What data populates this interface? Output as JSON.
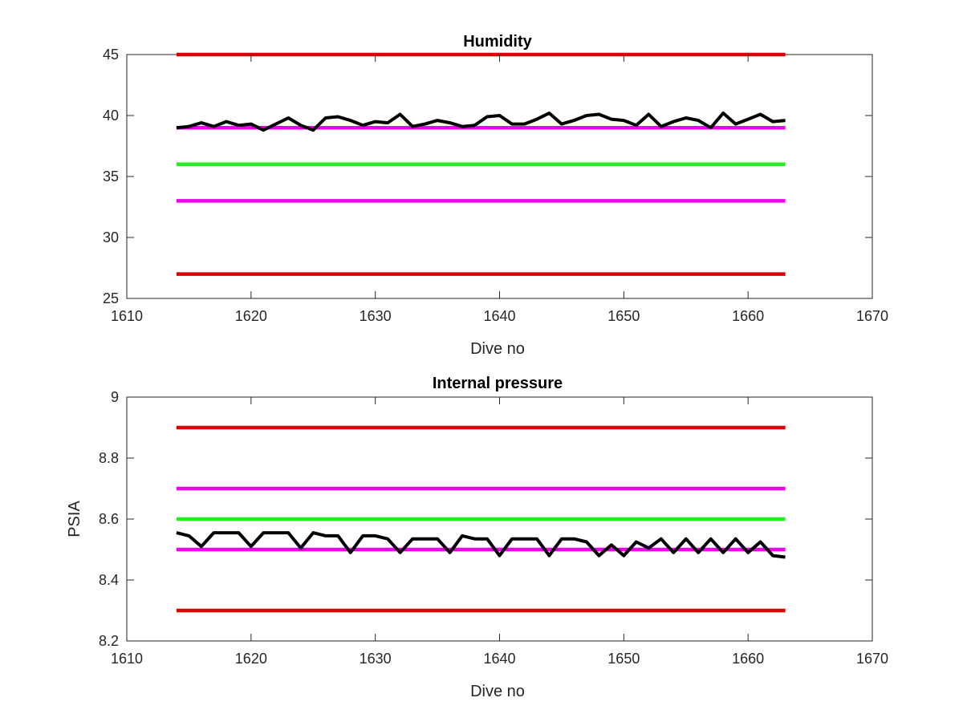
{
  "chart_data": [
    {
      "type": "line",
      "title": "Humidity",
      "xlabel": "Dive no",
      "ylabel": "",
      "xlim": [
        1610,
        1670
      ],
      "ylim": [
        25,
        45
      ],
      "xticks": [
        "1610",
        "1620",
        "1630",
        "1640",
        "1650",
        "1660",
        "1670"
      ],
      "yticks": [
        "25",
        "30",
        "35",
        "40",
        "45"
      ],
      "grid": false,
      "threshold_lines": [
        {
          "y": 45,
          "x": [
            1614,
            1663
          ],
          "color": "#dd0000"
        },
        {
          "y": 39,
          "x": [
            1614,
            1663
          ],
          "color": "#ee00ee"
        },
        {
          "y": 36,
          "x": [
            1614,
            1663
          ],
          "color": "#22ee22"
        },
        {
          "y": 33,
          "x": [
            1614,
            1663
          ],
          "color": "#ee00ee"
        },
        {
          "y": 27,
          "x": [
            1614,
            1663
          ],
          "color": "#dd0000"
        }
      ],
      "series": [
        {
          "color": "#000000",
          "x": [
            1614,
            1615,
            1616,
            1617,
            1618,
            1619,
            1620,
            1621,
            1622,
            1623,
            1624,
            1625,
            1626,
            1627,
            1628,
            1629,
            1630,
            1631,
            1632,
            1633,
            1634,
            1635,
            1636,
            1637,
            1638,
            1639,
            1640,
            1641,
            1642,
            1643,
            1644,
            1645,
            1646,
            1647,
            1648,
            1649,
            1650,
            1651,
            1652,
            1653,
            1654,
            1655,
            1656,
            1657,
            1658,
            1659,
            1660,
            1661,
            1662,
            1663
          ],
          "values": [
            39.0,
            39.1,
            39.4,
            39.1,
            39.5,
            39.2,
            39.3,
            38.8,
            39.3,
            39.8,
            39.2,
            38.8,
            39.8,
            39.9,
            39.6,
            39.2,
            39.5,
            39.4,
            40.1,
            39.1,
            39.3,
            39.6,
            39.4,
            39.1,
            39.2,
            39.9,
            40.0,
            39.3,
            39.3,
            39.7,
            40.2,
            39.3,
            39.6,
            40.0,
            40.1,
            39.7,
            39.6,
            39.2,
            40.1,
            39.1,
            39.5,
            39.8,
            39.6,
            39.0,
            40.2,
            39.3,
            39.7,
            40.1,
            39.5,
            39.6
          ]
        }
      ]
    },
    {
      "type": "line",
      "title": "Internal pressure",
      "xlabel": "Dive no",
      "ylabel": "PSIA",
      "xlim": [
        1610,
        1670
      ],
      "ylim": [
        8.2,
        9.0
      ],
      "xticks": [
        "1610",
        "1620",
        "1630",
        "1640",
        "1650",
        "1660",
        "1670"
      ],
      "yticks": [
        "8.2",
        "8.4",
        "8.6",
        "8.8",
        "9"
      ],
      "grid": false,
      "threshold_lines": [
        {
          "y": 8.9,
          "x": [
            1614,
            1663
          ],
          "color": "#dd0000"
        },
        {
          "y": 8.7,
          "x": [
            1614,
            1663
          ],
          "color": "#ee00ee"
        },
        {
          "y": 8.6,
          "x": [
            1614,
            1663
          ],
          "color": "#22ee22"
        },
        {
          "y": 8.5,
          "x": [
            1614,
            1663
          ],
          "color": "#ee00ee"
        },
        {
          "y": 8.3,
          "x": [
            1614,
            1663
          ],
          "color": "#dd0000"
        }
      ],
      "series": [
        {
          "color": "#000000",
          "x": [
            1614,
            1615,
            1616,
            1617,
            1618,
            1619,
            1620,
            1621,
            1622,
            1623,
            1624,
            1625,
            1626,
            1627,
            1628,
            1629,
            1630,
            1631,
            1632,
            1633,
            1634,
            1635,
            1636,
            1637,
            1638,
            1639,
            1640,
            1641,
            1642,
            1643,
            1644,
            1645,
            1646,
            1647,
            1648,
            1649,
            1650,
            1651,
            1652,
            1653,
            1654,
            1655,
            1656,
            1657,
            1658,
            1659,
            1660,
            1661,
            1662,
            1663
          ],
          "values": [
            8.555,
            8.545,
            8.51,
            8.555,
            8.555,
            8.555,
            8.51,
            8.555,
            8.555,
            8.555,
            8.505,
            8.555,
            8.545,
            8.545,
            8.49,
            8.545,
            8.545,
            8.535,
            8.49,
            8.535,
            8.535,
            8.535,
            8.49,
            8.545,
            8.535,
            8.535,
            8.48,
            8.535,
            8.535,
            8.535,
            8.48,
            8.535,
            8.535,
            8.525,
            8.48,
            8.515,
            8.48,
            8.525,
            8.505,
            8.535,
            8.49,
            8.535,
            8.49,
            8.535,
            8.49,
            8.535,
            8.49,
            8.525,
            8.48,
            8.475
          ]
        }
      ]
    }
  ]
}
